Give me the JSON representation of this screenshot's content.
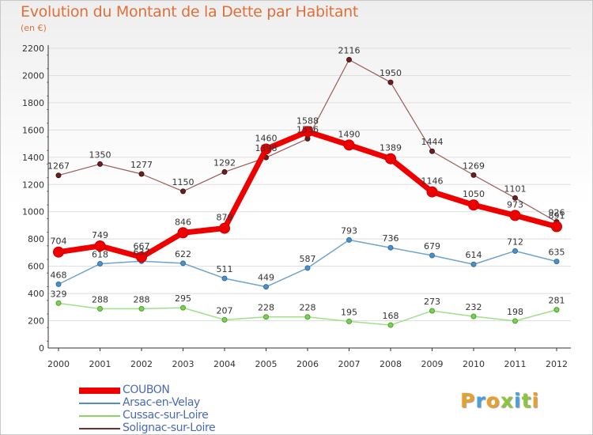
{
  "header": {
    "title": "Evolution du Montant de la Dette par Habitant",
    "subtitle": "(en €)"
  },
  "logo": {
    "letters": [
      "P",
      "r",
      "o",
      "x",
      "i",
      "t",
      "i"
    ],
    "colors": [
      "#e9a02a",
      "#4aa0d8",
      "#e9a02a",
      "#8cc63e",
      "#4aa0d8",
      "#8cc63e",
      "#e9a02a"
    ]
  },
  "chart_data": {
    "type": "line",
    "title": "Evolution du Montant de la Dette par Habitant",
    "ylabel": "(en €)",
    "xlabel": "",
    "x": [
      2000,
      2001,
      2002,
      2003,
      2004,
      2005,
      2006,
      2007,
      2008,
      2009,
      2010,
      2011,
      2012
    ],
    "ylim": [
      0,
      2200
    ],
    "yticks": [
      0,
      200,
      400,
      600,
      800,
      1000,
      1200,
      1400,
      1600,
      1800,
      2000,
      2200
    ],
    "grid": true,
    "legend_position": "bottom-left",
    "series": [
      {
        "name": "COUBON",
        "color": "#ee0000",
        "values": [
          704,
          749,
          667,
          846,
          879,
          1460,
          1588,
          1490,
          1389,
          1146,
          1050,
          973,
          891
        ]
      },
      {
        "name": "Arsac-en-Velay",
        "color": "#4e8fc4",
        "values": [
          468,
          618,
          637,
          622,
          511,
          449,
          587,
          793,
          736,
          679,
          614,
          712,
          635
        ]
      },
      {
        "name": "Cussac-sur-Loire",
        "color": "#8cd669",
        "values": [
          329,
          288,
          288,
          295,
          207,
          228,
          228,
          195,
          168,
          273,
          232,
          198,
          281
        ]
      },
      {
        "name": "Solignac-sur-Loire",
        "color": "#7a2b2b",
        "values": [
          1267,
          1350,
          1277,
          1150,
          1292,
          1398,
          1536,
          2116,
          1950,
          1444,
          1269,
          1101,
          926
        ]
      }
    ]
  }
}
